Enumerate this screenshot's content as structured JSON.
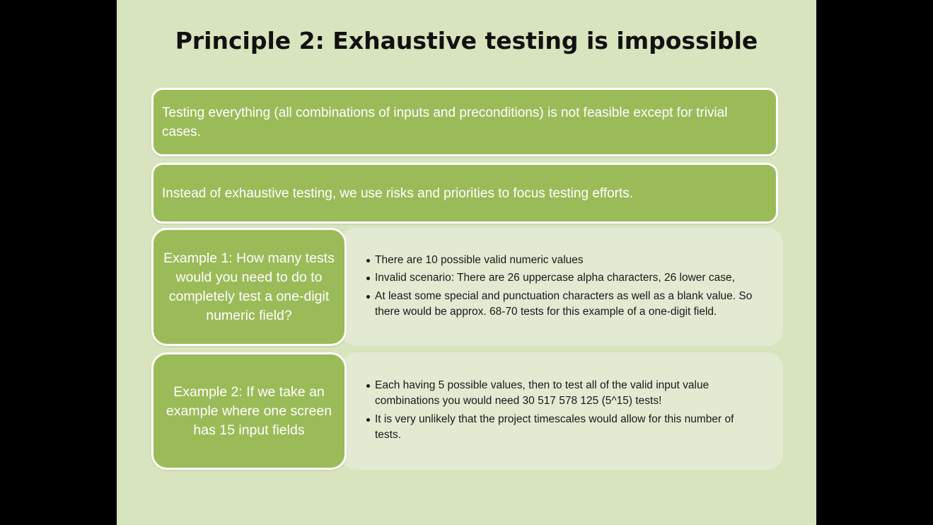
{
  "slide": {
    "title": "Principle 2: Exhaustive testing is impossible",
    "statements": [
      "Testing everything (all combinations of inputs and preconditions) is not feasible except for trivial cases.",
      "Instead of exhaustive testing, we use risks and priorities to focus testing efforts."
    ],
    "examples": [
      {
        "label": "Example 1: How many tests would you need to do to completely test a one-digit numeric field?",
        "bullets": [
          "There are 10 possible valid numeric values",
          "Invalid scenario: There are 26 uppercase alpha characters,  26 lower case,",
          "At least some special and punctuation characters as well as a blank value.  So there would be approx. 68-70 tests for this example of a one-digit field."
        ]
      },
      {
        "label": "Example 2: If we take an example where one screen has 15 input fields",
        "bullets": [
          "Each having 5 possible values, then to test all of the valid input value combinations you would need 30 517 578 125 (5^15) tests!",
          "It is very unlikely that the project timescales would allow for this number of tests."
        ]
      }
    ]
  },
  "colors": {
    "background_bars": "#000000",
    "slide_background": "#d7e4bd",
    "accent_green": "#9bbb59",
    "detail_panel": "#e2ead1",
    "text_light": "#ffffff",
    "text_dark": "#111111"
  }
}
